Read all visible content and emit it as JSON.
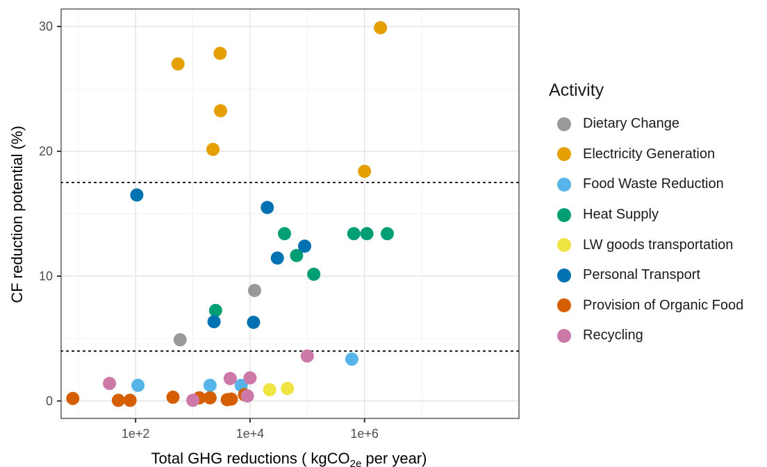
{
  "chart_data": {
    "type": "scatter",
    "xlabel_prefix": "Total GHG reductions ( kgCO",
    "xlabel_sub": "2e",
    "xlabel_suffix": " per year)",
    "ylabel": "CF reduction potential (%)",
    "x_scale": "log10",
    "xlim": [
      5,
      500000000
    ],
    "ylim": [
      -1.4,
      31.4
    ],
    "x_ticks": [
      100,
      10000,
      1000000
    ],
    "x_tick_labels": [
      "1e+2",
      "1e+4",
      "1e+6"
    ],
    "y_ticks": [
      0,
      10,
      20,
      30
    ],
    "y_tick_labels": [
      "0",
      "10",
      "20",
      "30"
    ],
    "reference_lines_y": [
      4,
      17.5
    ],
    "grid": true,
    "legend_position": "right",
    "legend_title": "Activity",
    "series": [
      {
        "name": "Dietary Change",
        "color": "#999999",
        "points": [
          [
            600,
            4.9
          ],
          [
            12000,
            8.85
          ]
        ]
      },
      {
        "name": "Electricity Generation",
        "color": "#E69F00",
        "points": [
          [
            550,
            27.0
          ],
          [
            3000,
            27.85
          ],
          [
            3050,
            23.25
          ],
          [
            2250,
            20.15
          ],
          [
            1000000,
            18.4
          ],
          [
            1900000,
            29.9
          ]
        ]
      },
      {
        "name": "Food Waste Reduction",
        "color": "#56B4E9",
        "points": [
          [
            110,
            1.25
          ],
          [
            2000,
            1.25
          ],
          [
            7000,
            1.25
          ],
          [
            600000,
            3.35
          ]
        ]
      },
      {
        "name": "Heat Supply",
        "color": "#009E73",
        "points": [
          [
            2500,
            7.25
          ],
          [
            40000,
            13.4
          ],
          [
            65000,
            11.65
          ],
          [
            130000,
            10.15
          ],
          [
            650000,
            13.4
          ],
          [
            1100000,
            13.4
          ],
          [
            2500000,
            13.4
          ]
        ]
      },
      {
        "name": "LW goods transportation",
        "color": "#F0E442",
        "points": [
          [
            22000,
            0.9
          ],
          [
            45000,
            1.0
          ]
        ]
      },
      {
        "name": "Personal Transport",
        "color": "#0072B2",
        "points": [
          [
            105,
            16.5
          ],
          [
            2350,
            6.35
          ],
          [
            11500,
            6.3
          ],
          [
            20000,
            15.5
          ],
          [
            30000,
            11.45
          ],
          [
            90000,
            12.4
          ]
        ]
      },
      {
        "name": "Provision of Organic Food",
        "color": "#D55E00",
        "points": [
          [
            8,
            0.2
          ],
          [
            50,
            0.05
          ],
          [
            80,
            0.05
          ],
          [
            450,
            0.3
          ],
          [
            1300,
            0.25
          ],
          [
            2000,
            0.25
          ],
          [
            4000,
            0.1
          ],
          [
            4700,
            0.15
          ],
          [
            8000,
            0.5
          ]
        ]
      },
      {
        "name": "Recycling",
        "color": "#CC79A7",
        "points": [
          [
            35,
            1.4
          ],
          [
            1000,
            0.05
          ],
          [
            4500,
            1.8
          ],
          [
            9000,
            0.4
          ],
          [
            10000,
            1.85
          ],
          [
            100000,
            3.6
          ]
        ]
      }
    ]
  }
}
